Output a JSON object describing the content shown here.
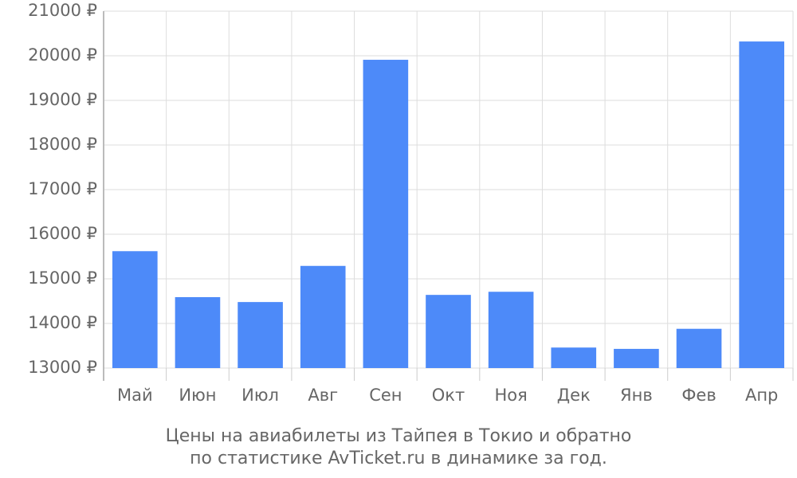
{
  "chart_data": {
    "type": "bar",
    "title": "Цены на авиабилеты из Тайпея в Токио и обратно",
    "subtitle": "по статистике AvTicket.ru в динамике за год.",
    "categories": [
      "Май",
      "Июн",
      "Июл",
      "Авг",
      "Сен",
      "Окт",
      "Ноя",
      "Дек",
      "Янв",
      "Фев",
      "Апр"
    ],
    "values": [
      15620,
      14590,
      14480,
      15290,
      19910,
      14640,
      14710,
      13460,
      13430,
      13880,
      20320
    ],
    "color": "#4d8af9",
    "ylim": [
      13000,
      21000
    ],
    "yticks": [
      {
        "value": 13000,
        "label": "13000 ₽"
      },
      {
        "value": 14000,
        "label": "14000 ₽"
      },
      {
        "value": 15000,
        "label": "15000 ₽"
      },
      {
        "value": 16000,
        "label": "16000 ₽"
      },
      {
        "value": 17000,
        "label": "17000 ₽"
      },
      {
        "value": 18000,
        "label": "18000 ₽"
      },
      {
        "value": 19000,
        "label": "19000 ₽"
      },
      {
        "value": 20000,
        "label": "20000 ₽"
      },
      {
        "value": 21000,
        "label": "21000 ₽"
      }
    ],
    "grid": true
  }
}
